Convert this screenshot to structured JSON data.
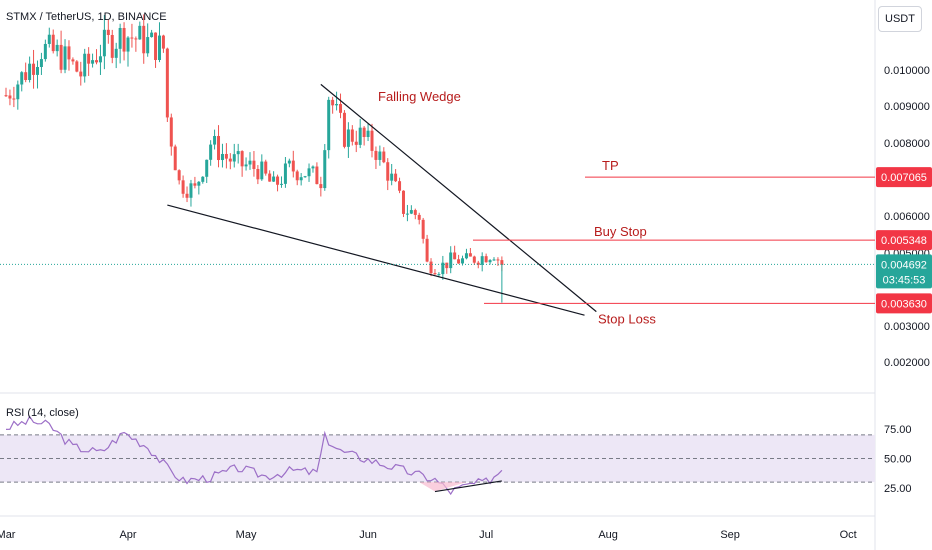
{
  "header": {
    "title": "STMX / TetherUS, 1D, BINANCE",
    "currency": "USDT"
  },
  "colors": {
    "up": "#26a69a",
    "down": "#ef5350",
    "level": "#f23645",
    "wedge": "#131722",
    "rsi_line": "#9c6fc7",
    "rsi_band": "#ede7f6",
    "last_price": "#26a69a"
  },
  "chart_data": [
    {
      "type": "candlestick",
      "title": "STMX / TetherUS, 1D, BINANCE",
      "x_ticks": [
        "Mar",
        "Apr",
        "May",
        "Jun",
        "Jul",
        "Aug",
        "Sep",
        "Oct"
      ],
      "y_ticks": [
        "0.010000",
        "0.009000",
        "0.008000",
        "0.006000",
        "0.005000",
        "0.003000",
        "0.002000"
      ],
      "ylim": [
        0.0015,
        0.0115
      ],
      "series": [
        {
          "x": [
            "2023-03-01",
            "2023-03-05",
            "2023-03-10",
            "2023-03-15",
            "2023-03-20",
            "2023-03-25",
            "2023-03-31",
            "2023-04-05",
            "2023-04-10",
            "2023-04-11",
            "2023-04-14",
            "2023-04-18",
            "2023-04-22",
            "2023-04-26",
            "2023-04-30",
            "2023-05-04",
            "2023-05-08",
            "2023-05-12",
            "2023-05-16",
            "2023-05-20",
            "2023-05-22",
            "2023-05-26",
            "2023-05-30",
            "2023-06-03",
            "2023-06-07",
            "2023-06-10",
            "2023-06-14",
            "2023-06-16",
            "2023-06-19",
            "2023-06-22",
            "2023-06-26",
            "2023-06-30",
            "2023-07-03",
            "2023-07-05"
          ],
          "close": [
            0.0093,
            0.0098,
            0.0106,
            0.0104,
            0.0099,
            0.0106,
            0.011,
            0.0108,
            0.0106,
            0.0087,
            0.0069,
            0.0067,
            0.008,
            0.0076,
            0.0074,
            0.0073,
            0.0068,
            0.0073,
            0.0072,
            0.007,
            0.0093,
            0.0082,
            0.0082,
            0.0078,
            0.007,
            0.0062,
            0.006,
            0.0047,
            0.0046,
            0.0048,
            0.0048,
            0.0049,
            0.005,
            0.004692
          ]
        }
      ],
      "annotations": [
        {
          "text": "Falling Wedge",
          "date": "2023-05-30",
          "price": 0.0097
        },
        {
          "text": "TP",
          "date": "2023-07-28",
          "price": 0.007065
        },
        {
          "text": "Buy Stop",
          "date": "2023-07-28",
          "price": 0.005348
        },
        {
          "text": "Stop Loss",
          "date": "2023-07-28",
          "price": 0.00363
        }
      ],
      "levels": [
        {
          "name": "TP",
          "price": 0.007065,
          "label": "0.007065"
        },
        {
          "name": "Buy Stop",
          "price": 0.005348,
          "label": "0.005348"
        },
        {
          "name": "Stop Loss",
          "price": 0.00363,
          "label": "0.003630"
        }
      ],
      "last_price": {
        "label": "0.004692",
        "countdown": "03:45:53"
      },
      "wedge": {
        "upper": [
          [
            "2023-05-20",
            0.0096
          ],
          [
            "2023-07-29",
            0.0034
          ]
        ],
        "lower": [
          [
            "2023-04-11",
            0.0063
          ],
          [
            "2023-07-26",
            0.0033
          ]
        ]
      }
    },
    {
      "type": "line",
      "title": "RSI (14, close)",
      "y_ticks": [
        "75.00",
        "50.00",
        "25.00"
      ],
      "ylim": [
        10,
        90
      ],
      "band": [
        30,
        70
      ],
      "series": [
        {
          "x": [
            "2023-03-01",
            "2023-03-07",
            "2023-03-12",
            "2023-03-18",
            "2023-03-25",
            "2023-03-31",
            "2023-04-06",
            "2023-04-11",
            "2023-04-15",
            "2023-04-22",
            "2023-04-29",
            "2023-05-06",
            "2023-05-13",
            "2023-05-19",
            "2023-05-21",
            "2023-05-25",
            "2023-05-31",
            "2023-06-06",
            "2023-06-12",
            "2023-06-18",
            "2023-06-22",
            "2023-06-27",
            "2023-07-01",
            "2023-07-05"
          ],
          "y": [
            76,
            82,
            78,
            60,
            55,
            72,
            60,
            42,
            31,
            34,
            42,
            35,
            40,
            38,
            68,
            56,
            50,
            44,
            38,
            32,
            22,
            28,
            30,
            40
          ]
        }
      ],
      "divergence": [
        [
          "2023-06-18",
          22
        ],
        [
          "2023-07-05",
          31
        ]
      ]
    }
  ]
}
